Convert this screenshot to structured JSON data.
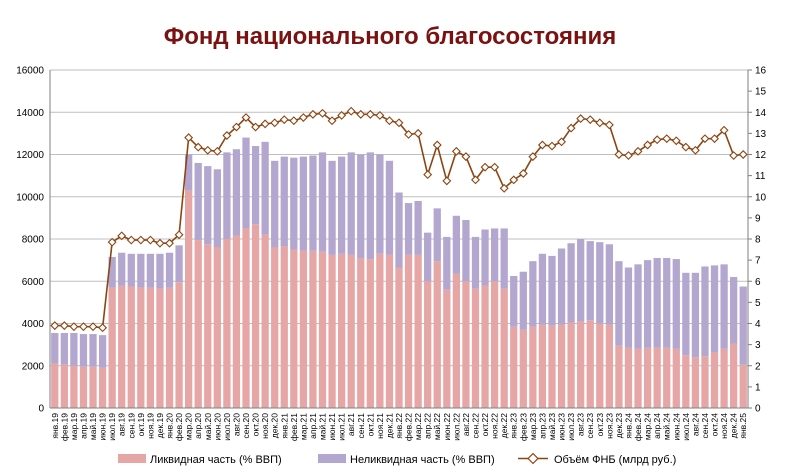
{
  "chart_data": {
    "type": "bar",
    "title": "Фонд национального благосостояния",
    "stacked": true,
    "categories": [
      "янв.19",
      "фев.19",
      "мар.19",
      "апр.19",
      "май.19",
      "июн.19",
      "июл.19",
      "авг.19",
      "сен.19",
      "окт.19",
      "ноя.19",
      "дек.19",
      "янв.20",
      "фев.20",
      "мар.20",
      "апр.20",
      "май.20",
      "июн.20",
      "июл.20",
      "авг.20",
      "сен.20",
      "окт.20",
      "ноя.20",
      "дек.20",
      "янв.21",
      "фев.21",
      "мар.21",
      "апр.21",
      "май.21",
      "июн.21",
      "июл.21",
      "авг.21",
      "сен.21",
      "окт.21",
      "ноя.21",
      "дек.21",
      "янв.22",
      "фев.22",
      "мар.22",
      "апр.22",
      "май.22",
      "июн.22",
      "июл.22",
      "авг.22",
      "сен.22",
      "окт.22",
      "ноя.22",
      "дек.22",
      "янв.23",
      "фев.23",
      "мар.23",
      "апр.23",
      "май.23",
      "июн.23",
      "июл.23",
      "авг.23",
      "сен.23",
      "окт.23",
      "ноя.23",
      "дек.23",
      "янв.24",
      "фев.24",
      "мар.24",
      "апр.24",
      "май.24",
      "июн.24",
      "июл.24",
      "авг.24",
      "сен.24",
      "окт.24",
      "ноя.24",
      "дек.24",
      "янв.25"
    ],
    "series": [
      {
        "name": "Ликвидная часть (% ВВП)",
        "axis": "left",
        "color": "#e6a6a6",
        "values": [
          2100,
          2050,
          2000,
          1950,
          1950,
          1900,
          5700,
          5800,
          5750,
          5700,
          5700,
          5650,
          5700,
          5950,
          10300,
          7950,
          7750,
          7600,
          8000,
          8150,
          8500,
          8700,
          8200,
          7600,
          7650,
          7500,
          7450,
          7450,
          7400,
          7250,
          7300,
          7250,
          7100,
          7050,
          7300,
          7250,
          6650,
          7250,
          7250,
          6000,
          6950,
          5600,
          6350,
          6000,
          5650,
          5800,
          6000,
          5650,
          3850,
          3700,
          3850,
          3950,
          3900,
          3950,
          4050,
          4100,
          4150,
          4000,
          3950,
          2950,
          2850,
          2800,
          2850,
          2850,
          2850,
          2800,
          2500,
          2400,
          2450,
          2650,
          2800,
          3050,
          2050
        ]
      },
      {
        "name": "Неликвидная часть (% ВВП)",
        "axis": "left",
        "color": "#b3a6cf",
        "values": [
          1450,
          1500,
          1550,
          1550,
          1550,
          1550,
          1450,
          1550,
          1550,
          1600,
          1600,
          1650,
          1650,
          1750,
          1700,
          3650,
          3700,
          3700,
          4100,
          4100,
          4300,
          3700,
          4400,
          4100,
          4250,
          4350,
          4450,
          4500,
          4700,
          4450,
          4600,
          4850,
          4900,
          5050,
          4700,
          4450,
          3550,
          2450,
          2550,
          2300,
          2500,
          2500,
          2750,
          2900,
          2450,
          2650,
          2500,
          2850,
          2400,
          2750,
          3100,
          3350,
          3300,
          3600,
          3750,
          3900,
          3750,
          3850,
          3800,
          4000,
          3800,
          4000,
          4150,
          4250,
          4250,
          4250,
          3900,
          4000,
          4250,
          4100,
          4000,
          3150,
          3700
        ]
      },
      {
        "name": "Объём ФНБ (млрд руб.)",
        "axis": "right",
        "type": "line",
        "color": "#8b4513",
        "values": [
          3.9,
          3.9,
          3.85,
          3.85,
          3.85,
          3.8,
          7.85,
          8.15,
          7.95,
          7.95,
          7.95,
          7.8,
          7.8,
          8.2,
          12.8,
          12.35,
          12.2,
          12.15,
          12.9,
          13.3,
          13.75,
          13.3,
          13.45,
          13.5,
          13.65,
          13.6,
          13.75,
          13.9,
          13.95,
          13.6,
          13.85,
          14.05,
          13.9,
          13.9,
          13.85,
          13.6,
          13.5,
          12.95,
          13.0,
          11.05,
          12.45,
          10.75,
          12.15,
          11.9,
          10.8,
          11.4,
          11.4,
          10.4,
          10.8,
          11.1,
          11.9,
          12.45,
          12.4,
          12.6,
          13.25,
          13.7,
          13.65,
          13.5,
          13.4,
          12.0,
          11.95,
          12.15,
          12.45,
          12.7,
          12.75,
          12.65,
          12.35,
          12.2,
          12.75,
          12.75,
          13.15,
          11.95,
          12.0
        ]
      }
    ],
    "ylim_left": [
      0,
      16000
    ],
    "yticks_left": [
      "0",
      "2000",
      "4000",
      "6000",
      "8000",
      "10000",
      "12000",
      "14000",
      "16000"
    ],
    "ylim_right": [
      0,
      16
    ],
    "yticks_right": [
      "0",
      "1",
      "2",
      "3",
      "4",
      "5",
      "6",
      "7",
      "8",
      "9",
      "10",
      "11",
      "12",
      "13",
      "14",
      "15",
      "16"
    ],
    "grid": true,
    "legend": "bottom"
  }
}
